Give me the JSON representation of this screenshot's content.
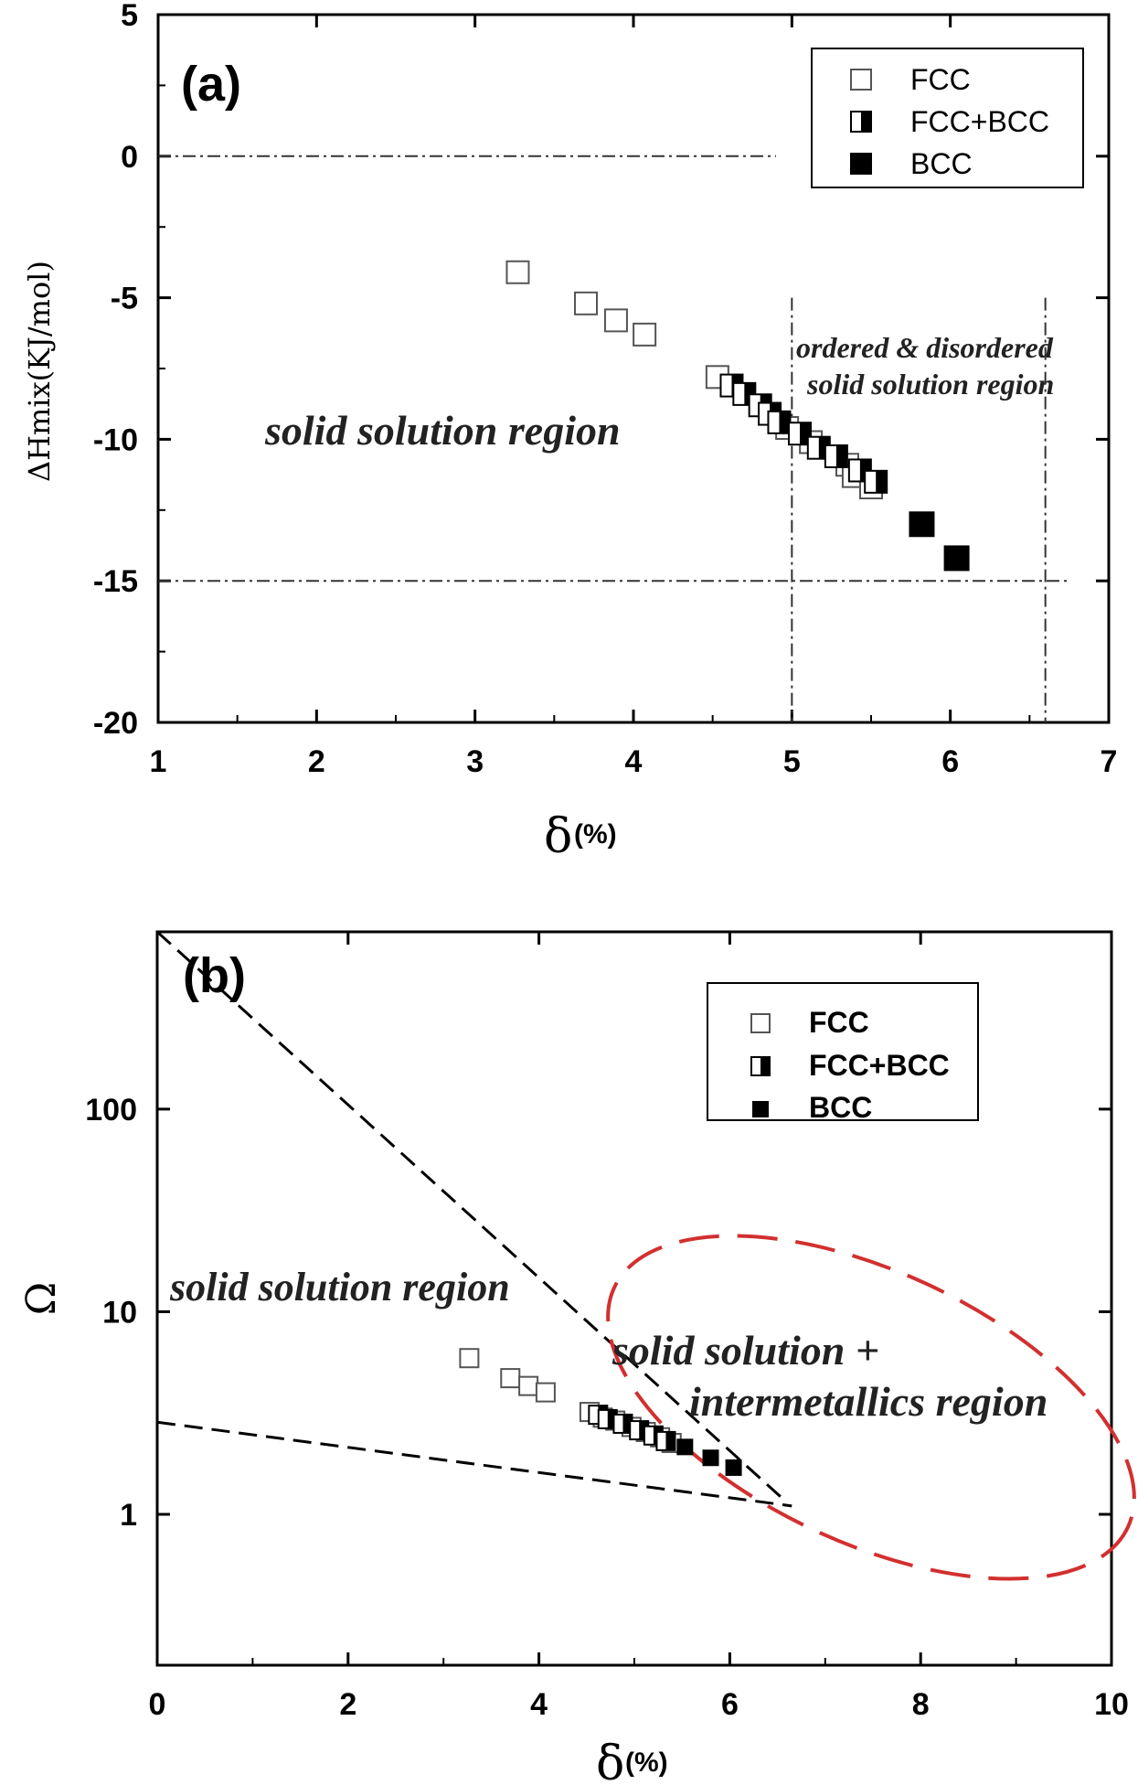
{
  "chart_data": [
    {
      "panel": "(a)",
      "type": "scatter",
      "xlabel": "δ",
      "xlabel_unit": "(%)",
      "ylabel": "ΔHmix(KJ/mol)",
      "xlim": [
        1,
        7
      ],
      "ylim": [
        -20,
        5
      ],
      "xticks": [
        "1",
        "2",
        "3",
        "4",
        "5",
        "6",
        "7"
      ],
      "yticks": [
        "5",
        "0",
        "-5",
        "-10",
        "-15",
        "-20"
      ],
      "legend": [
        "FCC",
        "FCC+BCC",
        "BCC"
      ],
      "legend_position": "top-right",
      "series": [
        {
          "name": "FCC",
          "marker": "open-square",
          "points": [
            [
              3.27,
              -4.1
            ],
            [
              3.7,
              -5.2
            ],
            [
              3.89,
              -5.8
            ],
            [
              4.07,
              -6.3
            ],
            [
              4.53,
              -7.8
            ],
            [
              4.97,
              -9.6
            ],
            [
              5.12,
              -10.1
            ],
            [
              5.35,
              -10.9
            ],
            [
              5.39,
              -11.3
            ],
            [
              5.5,
              -11.7
            ]
          ]
        },
        {
          "name": "FCC+BCC",
          "marker": "half-filled-square",
          "points": [
            [
              4.62,
              -8.1
            ],
            [
              4.7,
              -8.4
            ],
            [
              4.8,
              -8.8
            ],
            [
              4.86,
              -9.1
            ],
            [
              4.92,
              -9.4
            ],
            [
              5.05,
              -9.8
            ],
            [
              5.17,
              -10.3
            ],
            [
              5.28,
              -10.6
            ],
            [
              5.43,
              -11.1
            ],
            [
              5.53,
              -11.5
            ]
          ]
        },
        {
          "name": "BCC",
          "marker": "filled-square",
          "points": [
            [
              5.82,
              -13.0
            ],
            [
              6.04,
              -14.2
            ]
          ]
        }
      ],
      "annotations": [
        {
          "text": "solid solution region"
        },
        {
          "text": "ordered & disordered"
        },
        {
          "text": "solid solution region"
        }
      ]
    },
    {
      "panel": "(b)",
      "type": "scatter",
      "xlabel": "δ",
      "xlabel_unit": "(%)",
      "ylabel": "Ω",
      "xlim": [
        0,
        10
      ],
      "ylim": [
        0.18,
        750
      ],
      "y_scale": "log",
      "xticks": [
        "0",
        "2",
        "4",
        "6",
        "8",
        "10"
      ],
      "yticks": [
        "100",
        "10",
        "1"
      ],
      "legend": [
        "FCC",
        "FCC+BCC",
        "BCC"
      ],
      "legend_position": "top-right",
      "series": [
        {
          "name": "FCC",
          "marker": "open-square",
          "points": [
            [
              3.27,
              5.9
            ],
            [
              3.7,
              4.7
            ],
            [
              3.89,
              4.3
            ],
            [
              4.07,
              4.0
            ],
            [
              4.53,
              3.2
            ],
            [
              4.67,
              3.0
            ],
            [
              4.8,
              2.9
            ],
            [
              4.97,
              2.7
            ],
            [
              5.12,
              2.55
            ],
            [
              5.27,
              2.4
            ],
            [
              5.39,
              2.25
            ]
          ]
        },
        {
          "name": "FCC+BCC",
          "marker": "half-filled-square",
          "points": [
            [
              4.62,
              3.1
            ],
            [
              4.72,
              2.95
            ],
            [
              4.88,
              2.8
            ],
            [
              5.05,
              2.6
            ],
            [
              5.2,
              2.45
            ],
            [
              5.33,
              2.3
            ]
          ]
        },
        {
          "name": "BCC",
          "marker": "filled-square",
          "points": [
            [
              5.53,
              2.15
            ],
            [
              5.8,
              1.9
            ],
            [
              6.04,
              1.7
            ]
          ]
        }
      ],
      "lines": [
        {
          "style": "dashed",
          "from": [
            0,
            750
          ],
          "to": [
            6.55,
            1.2
          ]
        },
        {
          "style": "dashed",
          "from": [
            0,
            2.85
          ],
          "to": [
            6.65,
            1.1
          ]
        }
      ],
      "annotations": [
        {
          "text": "solid solution region",
          "color": "#222222"
        },
        {
          "text": "solid solution +",
          "color": "#d32f2f"
        },
        {
          "text": "intermetallics region",
          "color": "#d32f2f"
        }
      ],
      "ellipse_color": "#d32f2f"
    }
  ]
}
